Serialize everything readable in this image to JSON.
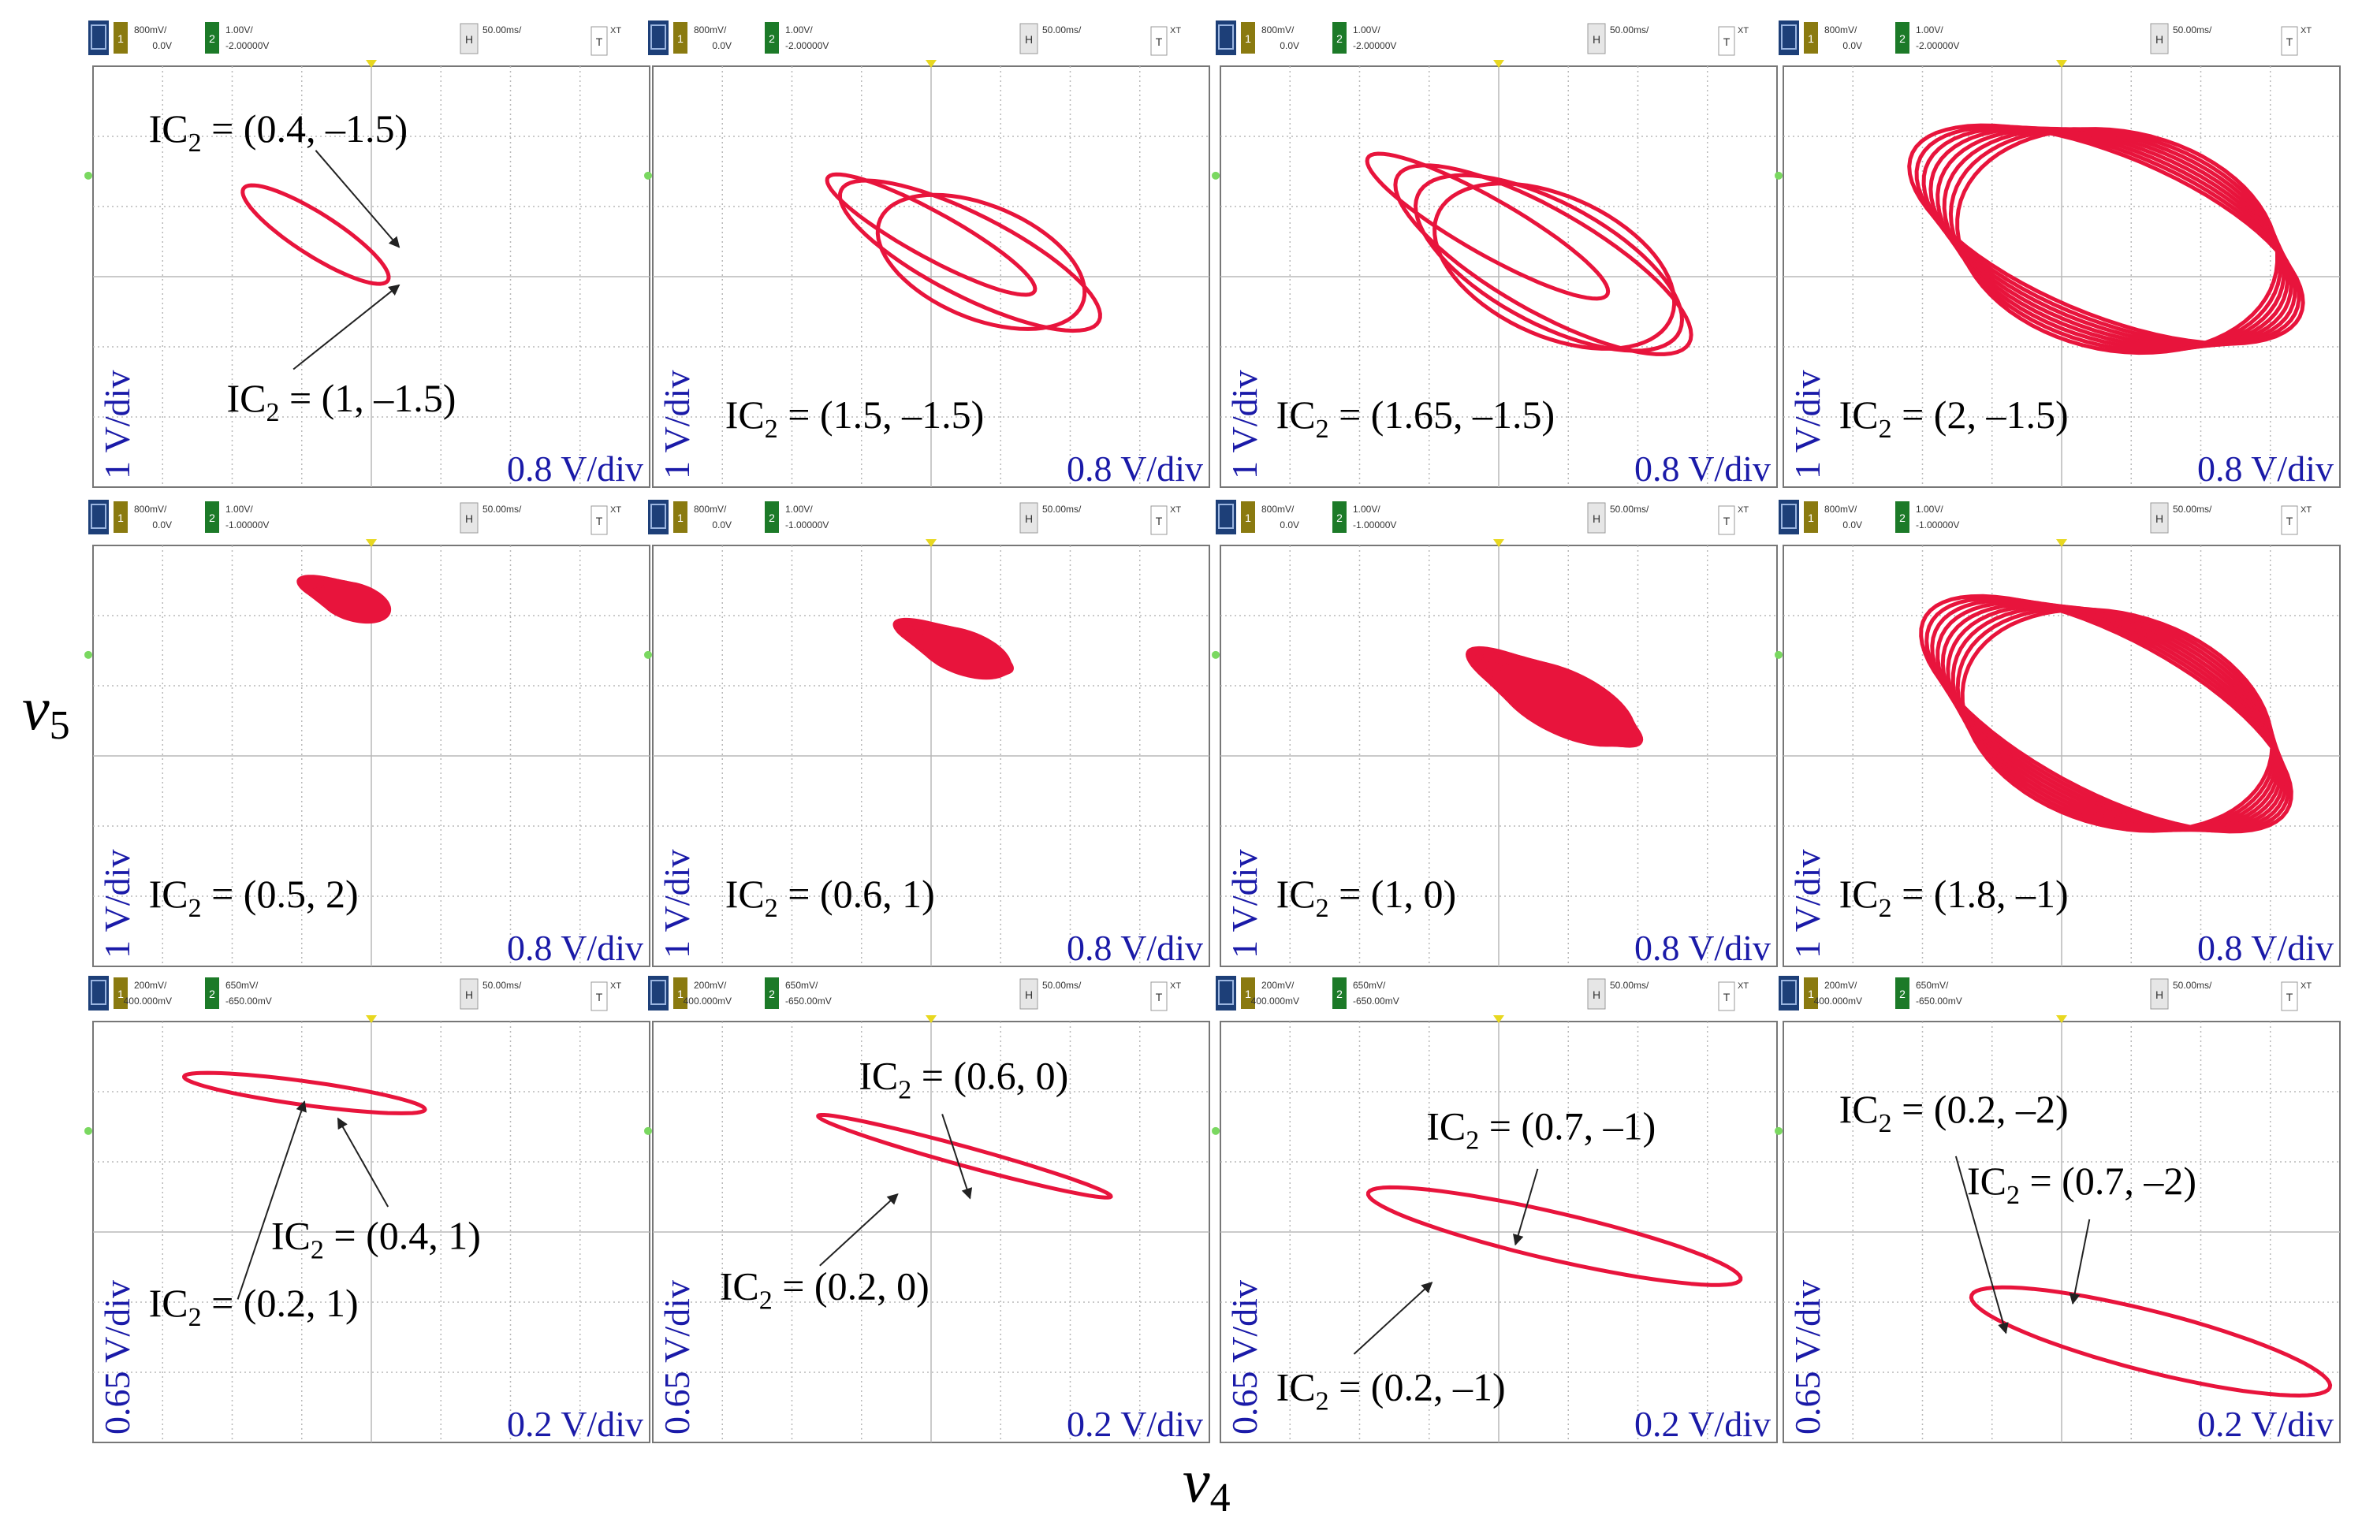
{
  "figure": {
    "x_axis_label": "v",
    "x_axis_sub": "4",
    "y_axis_label": "v",
    "y_axis_sub": "5",
    "colors": {
      "trace": "#e8143c",
      "scale_text": "#1a1aa8",
      "grid": "#b8b8b8",
      "toolbar_dark": "#1d3f78",
      "ch1": "#8a7a10",
      "ch2": "#1c7a28"
    }
  },
  "panels": [
    {
      "toolbar": {
        "ch1_scale": "800mV/",
        "ch1_offset": "0.0V",
        "ch2_scale": "1.00V/",
        "ch2_offset": "-2.00000V",
        "timebase": "50.00ms/",
        "h_btn": "H",
        "t_btn": "T",
        "mode": "XT"
      },
      "yscale": "1 V/div",
      "xscale": "0.8 V/div",
      "annotations": [
        {
          "main": "IC",
          "sub": "2",
          "value": " = (0.4, –1.5)"
        },
        {
          "main": "IC",
          "sub": "2",
          "value": " = (1, –1.5)"
        }
      ]
    },
    {
      "toolbar": {
        "ch1_scale": "800mV/",
        "ch1_offset": "0.0V",
        "ch2_scale": "1.00V/",
        "ch2_offset": "-2.00000V",
        "timebase": "50.00ms/",
        "h_btn": "H",
        "t_btn": "T",
        "mode": "XT"
      },
      "yscale": "1 V/div",
      "xscale": "0.8 V/div",
      "annotations": [
        {
          "main": "IC",
          "sub": "2",
          "value": " = (1.5, –1.5)"
        }
      ]
    },
    {
      "toolbar": {
        "ch1_scale": "800mV/",
        "ch1_offset": "0.0V",
        "ch2_scale": "1.00V/",
        "ch2_offset": "-2.00000V",
        "timebase": "50.00ms/",
        "h_btn": "H",
        "t_btn": "T",
        "mode": "XT"
      },
      "yscale": "1 V/div",
      "xscale": "0.8 V/div",
      "annotations": [
        {
          "main": "IC",
          "sub": "2",
          "value": " = (1.65, –1.5)"
        }
      ]
    },
    {
      "toolbar": {
        "ch1_scale": "800mV/",
        "ch1_offset": "0.0V",
        "ch2_scale": "1.00V/",
        "ch2_offset": "-2.00000V",
        "timebase": "50.00ms/",
        "h_btn": "H",
        "t_btn": "T",
        "mode": "XT"
      },
      "yscale": "1 V/div",
      "xscale": "0.8 V/div",
      "annotations": [
        {
          "main": "IC",
          "sub": "2",
          "value": " = (2, –1.5)"
        }
      ]
    },
    {
      "toolbar": {
        "ch1_scale": "800mV/",
        "ch1_offset": "0.0V",
        "ch2_scale": "1.00V/",
        "ch2_offset": "-1.00000V",
        "timebase": "50.00ms/",
        "h_btn": "H",
        "t_btn": "T",
        "mode": "XT"
      },
      "yscale": "1 V/div",
      "xscale": "0.8 V/div",
      "annotations": [
        {
          "main": "IC",
          "sub": "2",
          "value": " = (0.5, 2)"
        }
      ]
    },
    {
      "toolbar": {
        "ch1_scale": "800mV/",
        "ch1_offset": "0.0V",
        "ch2_scale": "1.00V/",
        "ch2_offset": "-1.00000V",
        "timebase": "50.00ms/",
        "h_btn": "H",
        "t_btn": "T",
        "mode": "XT"
      },
      "yscale": "1 V/div",
      "xscale": "0.8 V/div",
      "annotations": [
        {
          "main": "IC",
          "sub": "2",
          "value": " = (0.6, 1)"
        }
      ]
    },
    {
      "toolbar": {
        "ch1_scale": "800mV/",
        "ch1_offset": "0.0V",
        "ch2_scale": "1.00V/",
        "ch2_offset": "-1.00000V",
        "timebase": "50.00ms/",
        "h_btn": "H",
        "t_btn": "T",
        "mode": "XT"
      },
      "yscale": "1 V/div",
      "xscale": "0.8 V/div",
      "annotations": [
        {
          "main": "IC",
          "sub": "2",
          "value": " = (1, 0)"
        }
      ]
    },
    {
      "toolbar": {
        "ch1_scale": "800mV/",
        "ch1_offset": "0.0V",
        "ch2_scale": "1.00V/",
        "ch2_offset": "-1.00000V",
        "timebase": "50.00ms/",
        "h_btn": "H",
        "t_btn": "T",
        "mode": "XT"
      },
      "yscale": "1 V/div",
      "xscale": "0.8 V/div",
      "annotations": [
        {
          "main": "IC",
          "sub": "2",
          "value": " = (1.8, –1)"
        }
      ]
    },
    {
      "toolbar": {
        "ch1_scale": "200mV/",
        "ch1_offset": "400.000mV",
        "ch2_scale": "650mV/",
        "ch2_offset": "-650.00mV",
        "timebase": "50.00ms/",
        "h_btn": "H",
        "t_btn": "T",
        "mode": "XT"
      },
      "yscale": "0.65 V/div",
      "xscale": "0.2 V/div",
      "annotations": [
        {
          "main": "IC",
          "sub": "2",
          "value": " = (0.4, 1)"
        },
        {
          "main": "IC",
          "sub": "2",
          "value": " = (0.2, 1)"
        }
      ]
    },
    {
      "toolbar": {
        "ch1_scale": "200mV/",
        "ch1_offset": "400.000mV",
        "ch2_scale": "650mV/",
        "ch2_offset": "-650.00mV",
        "timebase": "50.00ms/",
        "h_btn": "H",
        "t_btn": "T",
        "mode": "XT"
      },
      "yscale": "0.65 V/div",
      "xscale": "0.2 V/div",
      "annotations": [
        {
          "main": "IC",
          "sub": "2",
          "value": " = (0.6, 0)"
        },
        {
          "main": "IC",
          "sub": "2",
          "value": " = (0.2, 0)"
        }
      ]
    },
    {
      "toolbar": {
        "ch1_scale": "200mV/",
        "ch1_offset": "400.000mV",
        "ch2_scale": "650mV/",
        "ch2_offset": "-650.00mV",
        "timebase": "50.00ms/",
        "h_btn": "H",
        "t_btn": "T",
        "mode": "XT"
      },
      "yscale": "0.65 V/div",
      "xscale": "0.2 V/div",
      "annotations": [
        {
          "main": "IC",
          "sub": "2",
          "value": " = (0.7, –1)"
        },
        {
          "main": "IC",
          "sub": "2",
          "value": " = (0.2, –1)"
        }
      ]
    },
    {
      "toolbar": {
        "ch1_scale": "200mV/",
        "ch1_offset": "400.000mV",
        "ch2_scale": "650mV/",
        "ch2_offset": "-650.00mV",
        "timebase": "50.00ms/",
        "h_btn": "H",
        "t_btn": "T",
        "mode": "XT"
      },
      "yscale": "0.65 V/div",
      "xscale": "0.2 V/div",
      "annotations": [
        {
          "main": "IC",
          "sub": "2",
          "value": " = (0.2, –2)"
        },
        {
          "main": "IC",
          "sub": "2",
          "value": " = (0.7, –2)"
        }
      ]
    }
  ]
}
